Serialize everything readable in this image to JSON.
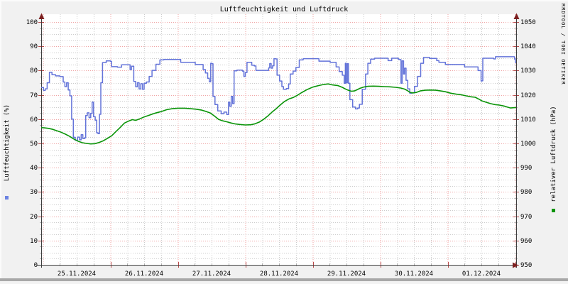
{
  "title": "Luftfeuchtigkeit und Luftdruck",
  "watermark": "RRDTOOL / TOBI OETIKER",
  "colors": {
    "background": "#f1f1f1",
    "canvas": "#ffffff",
    "major_grid": "#f0a4a4",
    "minor_grid": "#cccccc",
    "axis": "#3d3d3d",
    "arrow": "#7d2020",
    "major_tick": "#b84a4a",
    "minor_tick": "#b0b0b0",
    "humidity_line": "#6373d9",
    "pressure_line": "#0a9408",
    "watermark_text": "#cdcdcd",
    "frame_shadow": "#a8a8a8",
    "frame_light": "#fbfbfb"
  },
  "legend": {
    "left_marker_color": "#6b82e2",
    "right_marker_color": "#0a9408"
  },
  "chart_data": {
    "type": "line",
    "title": "Luftfeuchtigkeit und Luftdruck",
    "x_axis": {
      "unit": "hours from 25.11.2024 00:00",
      "range": [
        -0.63,
        168.42
      ],
      "major_grid_hours": 24,
      "minor_grid_hours": 6,
      "labels": [
        {
          "text": "25.11.2024",
          "hour": 12
        },
        {
          "text": "26.11.2024",
          "hour": 36
        },
        {
          "text": "27.11.2024",
          "hour": 60
        },
        {
          "text": "28.11.2024",
          "hour": 84
        },
        {
          "text": "29.11.2024",
          "hour": 108
        },
        {
          "text": "30.11.2024",
          "hour": 132
        },
        {
          "text": "01.12.2024",
          "hour": 156
        }
      ]
    },
    "left_axis": {
      "label": "Luftfeuchtigkeit (%)",
      "min": 0,
      "max": 100,
      "major_step": 10,
      "minor_step": 2.5,
      "ticks": [
        "0",
        "10",
        "20",
        "30",
        "40",
        "50",
        "60",
        "70",
        "80",
        "90",
        "100"
      ]
    },
    "right_axis": {
      "label": "relativer Luftdruck (hPa)",
      "min": 950,
      "max": 1050,
      "major_step": 10,
      "minor_step": 2.5,
      "ticks": [
        "950",
        "960",
        "970",
        "980",
        "990",
        "1000",
        "1010",
        "1020",
        "1030",
        "1040",
        "1050"
      ]
    },
    "series": [
      {
        "name": "Luftfeuchtigkeit",
        "axis": "left",
        "color": "#6373d9",
        "style": "step",
        "points": [
          [
            -0.6,
            73.0
          ],
          [
            0.2,
            71.8
          ],
          [
            0.8,
            72.5
          ],
          [
            1.5,
            75.0
          ],
          [
            2.3,
            79.3
          ],
          [
            3.2,
            78.3
          ],
          [
            4.5,
            77.8
          ],
          [
            6.0,
            77.5
          ],
          [
            7.2,
            75.3
          ],
          [
            7.8,
            73.4
          ],
          [
            8.4,
            75.0
          ],
          [
            9.0,
            72.0
          ],
          [
            9.6,
            69.6
          ],
          [
            10.2,
            60.0
          ],
          [
            10.8,
            52.5
          ],
          [
            11.5,
            51.3
          ],
          [
            12.3,
            52.6
          ],
          [
            13.0,
            51.5
          ],
          [
            13.6,
            53.6
          ],
          [
            14.2,
            52.0
          ],
          [
            14.8,
            52.3
          ],
          [
            15.2,
            61.5
          ],
          [
            15.8,
            62.6
          ],
          [
            16.4,
            60.6
          ],
          [
            17.0,
            62.4
          ],
          [
            17.5,
            67.0
          ],
          [
            18.0,
            61.0
          ],
          [
            18.6,
            59.6
          ],
          [
            19.1,
            54.4
          ],
          [
            19.6,
            54.0
          ],
          [
            20.1,
            62.0
          ],
          [
            20.6,
            75.0
          ],
          [
            21.2,
            83.3
          ],
          [
            22.5,
            84.0
          ],
          [
            24.0,
            83.8
          ],
          [
            24.4,
            81.6
          ],
          [
            26.5,
            81.4
          ],
          [
            28.0,
            82.4
          ],
          [
            30.3,
            82.4
          ],
          [
            31.0,
            80.4
          ],
          [
            31.5,
            81.8
          ],
          [
            32.3,
            75.5
          ],
          [
            33.0,
            73.3
          ],
          [
            33.6,
            75.0
          ],
          [
            34.2,
            72.4
          ],
          [
            34.8,
            74.6
          ],
          [
            35.4,
            72.3
          ],
          [
            36.0,
            74.8
          ],
          [
            36.8,
            75.3
          ],
          [
            37.8,
            77.6
          ],
          [
            38.8,
            80.1
          ],
          [
            40.2,
            82.6
          ],
          [
            41.6,
            84.4
          ],
          [
            43.0,
            84.6
          ],
          [
            48.4,
            84.6
          ],
          [
            49.0,
            83.4
          ],
          [
            53.5,
            83.4
          ],
          [
            54.2,
            82.5
          ],
          [
            56.2,
            82.5
          ],
          [
            57.0,
            80.4
          ],
          [
            57.8,
            79.0
          ],
          [
            58.6,
            76.8
          ],
          [
            59.2,
            75.4
          ],
          [
            59.7,
            83.0
          ],
          [
            60.1,
            82.8
          ],
          [
            60.5,
            69.4
          ],
          [
            61.2,
            66.0
          ],
          [
            62.2,
            63.4
          ],
          [
            63.4,
            62.2
          ],
          [
            64.4,
            62.9
          ],
          [
            65.4,
            61.9
          ],
          [
            66.0,
            67.0
          ],
          [
            66.5,
            65.3
          ],
          [
            67.0,
            69.4
          ],
          [
            67.5,
            66.4
          ],
          [
            68.0,
            79.9
          ],
          [
            69.0,
            80.2
          ],
          [
            71.0,
            79.8
          ],
          [
            71.5,
            77.6
          ],
          [
            72.0,
            79.2
          ],
          [
            72.6,
            83.4
          ],
          [
            73.6,
            83.4
          ],
          [
            74.3,
            82.2
          ],
          [
            75.2,
            81.9
          ],
          [
            75.8,
            80.1
          ],
          [
            79.5,
            80.1
          ],
          [
            80.3,
            81.1
          ],
          [
            80.7,
            82.9
          ],
          [
            81.2,
            81.0
          ],
          [
            81.7,
            82.0
          ],
          [
            82.2,
            84.9
          ],
          [
            82.8,
            84.8
          ],
          [
            83.3,
            78.1
          ],
          [
            84.2,
            75.7
          ],
          [
            85.0,
            73.4
          ],
          [
            85.6,
            72.3
          ],
          [
            86.6,
            72.6
          ],
          [
            87.4,
            74.5
          ],
          [
            88.0,
            78.6
          ],
          [
            89.0,
            79.8
          ],
          [
            90.0,
            81.3
          ],
          [
            91.2,
            84.4
          ],
          [
            92.6,
            84.9
          ],
          [
            97.5,
            84.9
          ],
          [
            98.2,
            83.9
          ],
          [
            101.5,
            83.9
          ],
          [
            102.2,
            83.4
          ],
          [
            103.5,
            83.4
          ],
          [
            104.3,
            81.5
          ],
          [
            105.4,
            79.6
          ],
          [
            106.5,
            78.1
          ],
          [
            107.2,
            74.8
          ],
          [
            107.6,
            83.0
          ],
          [
            107.9,
            74.9
          ],
          [
            108.3,
            82.8
          ],
          [
            108.7,
            74.8
          ],
          [
            109.2,
            68.0
          ],
          [
            110.2,
            65.0
          ],
          [
            111.2,
            64.2
          ],
          [
            112.0,
            64.6
          ],
          [
            112.6,
            66.1
          ],
          [
            113.6,
            72.3
          ],
          [
            114.8,
            78.6
          ],
          [
            115.6,
            83.0
          ],
          [
            116.6,
            84.7
          ],
          [
            118.0,
            85.1
          ],
          [
            122.0,
            85.1
          ],
          [
            122.8,
            84.1
          ],
          [
            123.6,
            84.1
          ],
          [
            124.1,
            85.1
          ],
          [
            126.5,
            84.6
          ],
          [
            127.0,
            84.5
          ],
          [
            127.4,
            74.8
          ],
          [
            127.8,
            84.0
          ],
          [
            128.3,
            78.6
          ],
          [
            128.7,
            81.0
          ],
          [
            129.2,
            76.0
          ],
          [
            129.8,
            72.5
          ],
          [
            130.5,
            70.7
          ],
          [
            131.3,
            70.9
          ],
          [
            132.2,
            73.5
          ],
          [
            133.3,
            77.6
          ],
          [
            134.4,
            83.0
          ],
          [
            135.4,
            85.4
          ],
          [
            136.9,
            85.4
          ],
          [
            137.6,
            85.0
          ],
          [
            139.3,
            85.0
          ],
          [
            140.1,
            84.1
          ],
          [
            140.9,
            83.4
          ],
          [
            142.6,
            83.4
          ],
          [
            143.2,
            82.5
          ],
          [
            149.4,
            82.5
          ],
          [
            150.0,
            81.5
          ],
          [
            154.2,
            81.5
          ],
          [
            154.8,
            80.0
          ],
          [
            155.5,
            80.0
          ],
          [
            155.9,
            75.7
          ],
          [
            156.2,
            75.8
          ],
          [
            156.5,
            85.1
          ],
          [
            160.4,
            84.8
          ],
          [
            161.0,
            85.7
          ],
          [
            167.4,
            85.7
          ],
          [
            167.8,
            84.7
          ],
          [
            168.1,
            83.4
          ],
          [
            168.4,
            83.2
          ]
        ]
      },
      {
        "name": "relativer Luftdruck",
        "axis": "right",
        "color": "#0a9408",
        "style": "line",
        "points": [
          [
            -0.6,
            1006.5
          ],
          [
            0.5,
            1006.4
          ],
          [
            2,
            1006.2
          ],
          [
            3.5,
            1005.8
          ],
          [
            5,
            1005.2
          ],
          [
            6.5,
            1004.6
          ],
          [
            8,
            1003.8
          ],
          [
            9.5,
            1002.9
          ],
          [
            11,
            1001.8
          ],
          [
            12.5,
            1000.9
          ],
          [
            14,
            1000.3
          ],
          [
            15.5,
            1000.0
          ],
          [
            17,
            999.8
          ],
          [
            18.5,
            999.9
          ],
          [
            20,
            1000.4
          ],
          [
            21.5,
            1001.1
          ],
          [
            23,
            1002.1
          ],
          [
            24.5,
            1003.2
          ],
          [
            26,
            1004.9
          ],
          [
            27.5,
            1006.6
          ],
          [
            29,
            1008.4
          ],
          [
            30.5,
            1009.2
          ],
          [
            31.8,
            1009.8
          ],
          [
            33,
            1009.5
          ],
          [
            34.2,
            1010.0
          ],
          [
            36,
            1010.9
          ],
          [
            38,
            1011.7
          ],
          [
            40,
            1012.5
          ],
          [
            42,
            1013.1
          ],
          [
            44,
            1013.9
          ],
          [
            46,
            1014.3
          ],
          [
            48,
            1014.5
          ],
          [
            50.5,
            1014.5
          ],
          [
            52.5,
            1014.3
          ],
          [
            54.5,
            1014.1
          ],
          [
            56.5,
            1013.7
          ],
          [
            58.2,
            1013.1
          ],
          [
            59.6,
            1012.5
          ],
          [
            61,
            1011.3
          ],
          [
            62.5,
            1009.9
          ],
          [
            64,
            1009.3
          ],
          [
            65.5,
            1008.9
          ],
          [
            67,
            1008.4
          ],
          [
            68.5,
            1008.0
          ],
          [
            70,
            1007.8
          ],
          [
            72,
            1007.6
          ],
          [
            74,
            1007.7
          ],
          [
            75.5,
            1008.1
          ],
          [
            77,
            1008.8
          ],
          [
            78.5,
            1009.9
          ],
          [
            80,
            1011.3
          ],
          [
            81.5,
            1012.9
          ],
          [
            83,
            1014.3
          ],
          [
            84.5,
            1015.9
          ],
          [
            86,
            1017.3
          ],
          [
            87.5,
            1018.3
          ],
          [
            89,
            1018.9
          ],
          [
            90.5,
            1019.8
          ],
          [
            92,
            1020.9
          ],
          [
            94,
            1022.2
          ],
          [
            96,
            1023.2
          ],
          [
            98,
            1023.8
          ],
          [
            100,
            1024.3
          ],
          [
            101.5,
            1024.5
          ],
          [
            103,
            1024.1
          ],
          [
            105,
            1023.8
          ],
          [
            106.5,
            1023.1
          ],
          [
            107.8,
            1022.3
          ],
          [
            108.8,
            1021.8
          ],
          [
            109.8,
            1021.5
          ],
          [
            110.8,
            1021.6
          ],
          [
            111.8,
            1022.1
          ],
          [
            112.8,
            1022.7
          ],
          [
            114,
            1023.2
          ],
          [
            115.5,
            1023.5
          ],
          [
            117.5,
            1023.6
          ],
          [
            119.5,
            1023.5
          ],
          [
            121.5,
            1023.4
          ],
          [
            123.5,
            1023.3
          ],
          [
            125.5,
            1023.1
          ],
          [
            127.3,
            1022.8
          ],
          [
            128.6,
            1022.4
          ],
          [
            129.6,
            1021.8
          ],
          [
            130.6,
            1021.0
          ],
          [
            131.6,
            1020.8
          ],
          [
            132.8,
            1021.0
          ],
          [
            134.2,
            1021.6
          ],
          [
            136,
            1021.9
          ],
          [
            138,
            1022.0
          ],
          [
            139.8,
            1021.9
          ],
          [
            141.5,
            1021.6
          ],
          [
            143.2,
            1021.3
          ],
          [
            145,
            1020.7
          ],
          [
            147,
            1020.3
          ],
          [
            149,
            1020.0
          ],
          [
            150.6,
            1019.6
          ],
          [
            152.2,
            1019.2
          ],
          [
            153.8,
            1019.0
          ],
          [
            155.2,
            1018.2
          ],
          [
            156.2,
            1017.5
          ],
          [
            157.6,
            1017.0
          ],
          [
            159.2,
            1016.4
          ],
          [
            160.8,
            1016.0
          ],
          [
            162.4,
            1015.8
          ],
          [
            164,
            1015.4
          ],
          [
            165.4,
            1014.9
          ],
          [
            166.4,
            1014.6
          ],
          [
            167.4,
            1014.7
          ],
          [
            168.4,
            1014.8
          ]
        ]
      }
    ]
  }
}
